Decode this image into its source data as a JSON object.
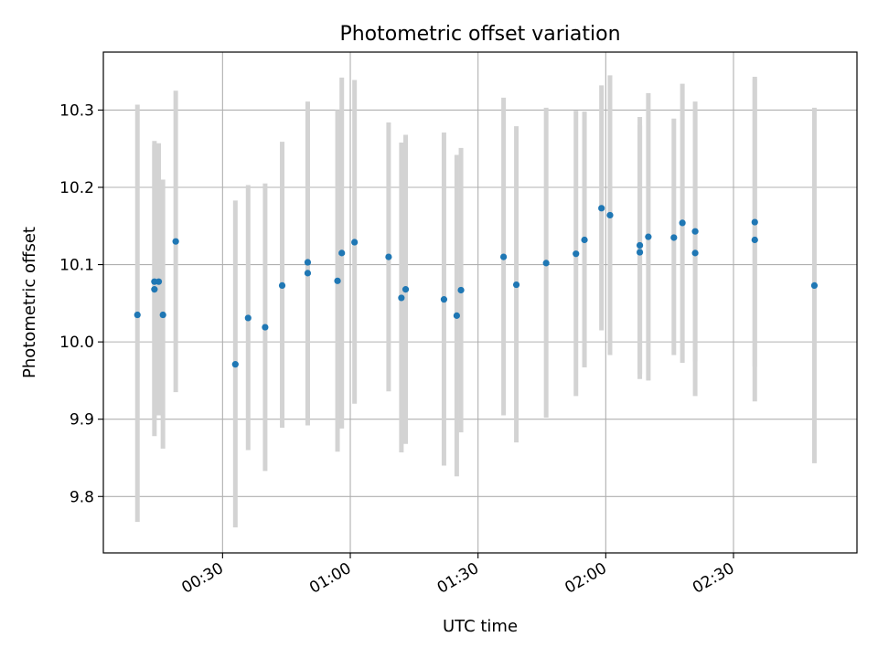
{
  "chart_data": {
    "type": "scatter",
    "title": "Photometric offset variation",
    "xlabel": "UTC time",
    "ylabel": "Photometric offset",
    "x_ticks": [
      "00:30",
      "01:00",
      "01:30",
      "02:00",
      "02:30"
    ],
    "y_ticks": [
      9.8,
      9.9,
      10.0,
      10.1,
      10.2,
      10.3
    ],
    "y_tick_labels": [
      "9.8",
      "9.9",
      "10.0",
      "10.1",
      "10.2",
      "10.3"
    ],
    "xlim": [
      "00:02",
      "02:59"
    ],
    "ylim": [
      9.727,
      10.375
    ],
    "grid": true,
    "colors": {
      "point": "#1f77b4",
      "errorbar": "#d3d3d3",
      "grid": "#b0b0b0"
    },
    "points": [
      {
        "x": "00:10",
        "y": 10.035,
        "err_low": 9.767,
        "err_high": 10.307
      },
      {
        "x": "00:14",
        "y": 10.068,
        "err_low": 9.878,
        "err_high": 10.26
      },
      {
        "x": "00:14",
        "y": 10.078,
        "err_low": 9.9,
        "err_high": 10.255
      },
      {
        "x": "00:15",
        "y": 10.078,
        "err_low": 9.905,
        "err_high": 10.257
      },
      {
        "x": "00:16",
        "y": 10.035,
        "err_low": 9.862,
        "err_high": 10.21
      },
      {
        "x": "00:19",
        "y": 10.13,
        "err_low": 9.935,
        "err_high": 10.325
      },
      {
        "x": "00:33",
        "y": 9.971,
        "err_low": 9.76,
        "err_high": 10.183
      },
      {
        "x": "00:36",
        "y": 10.031,
        "err_low": 9.86,
        "err_high": 10.203
      },
      {
        "x": "00:40",
        "y": 10.019,
        "err_low": 9.833,
        "err_high": 10.205
      },
      {
        "x": "00:44",
        "y": 10.073,
        "err_low": 9.889,
        "err_high": 10.259
      },
      {
        "x": "00:50",
        "y": 10.103,
        "err_low": 9.895,
        "err_high": 10.311
      },
      {
        "x": "00:50",
        "y": 10.089,
        "err_low": 9.892,
        "err_high": 10.288
      },
      {
        "x": "00:57",
        "y": 10.079,
        "err_low": 9.858,
        "err_high": 10.3
      },
      {
        "x": "00:58",
        "y": 10.115,
        "err_low": 9.888,
        "err_high": 10.342
      },
      {
        "x": "01:01",
        "y": 10.129,
        "err_low": 9.92,
        "err_high": 10.339
      },
      {
        "x": "01:09",
        "y": 10.11,
        "err_low": 9.936,
        "err_high": 10.284
      },
      {
        "x": "01:12",
        "y": 10.057,
        "err_low": 9.857,
        "err_high": 10.258
      },
      {
        "x": "01:13",
        "y": 10.068,
        "err_low": 9.868,
        "err_high": 10.268
      },
      {
        "x": "01:22",
        "y": 10.055,
        "err_low": 9.84,
        "err_high": 10.271
      },
      {
        "x": "01:25",
        "y": 10.034,
        "err_low": 9.826,
        "err_high": 10.242
      },
      {
        "x": "01:26",
        "y": 10.067,
        "err_low": 9.883,
        "err_high": 10.251
      },
      {
        "x": "01:36",
        "y": 10.11,
        "err_low": 9.905,
        "err_high": 10.316
      },
      {
        "x": "01:39",
        "y": 10.074,
        "err_low": 9.87,
        "err_high": 10.279
      },
      {
        "x": "01:46",
        "y": 10.102,
        "err_low": 9.902,
        "err_high": 10.303
      },
      {
        "x": "01:53",
        "y": 10.114,
        "err_low": 9.93,
        "err_high": 10.299
      },
      {
        "x": "01:55",
        "y": 10.132,
        "err_low": 9.967,
        "err_high": 10.298
      },
      {
        "x": "01:59",
        "y": 10.173,
        "err_low": 10.015,
        "err_high": 10.332
      },
      {
        "x": "02:01",
        "y": 10.164,
        "err_low": 9.983,
        "err_high": 10.345
      },
      {
        "x": "02:08",
        "y": 10.125,
        "err_low": 9.958,
        "err_high": 10.291
      },
      {
        "x": "02:08",
        "y": 10.116,
        "err_low": 9.952,
        "err_high": 10.28
      },
      {
        "x": "02:10",
        "y": 10.136,
        "err_low": 9.95,
        "err_high": 10.322
      },
      {
        "x": "02:16",
        "y": 10.135,
        "err_low": 9.983,
        "err_high": 10.289
      },
      {
        "x": "02:18",
        "y": 10.154,
        "err_low": 9.973,
        "err_high": 10.334
      },
      {
        "x": "02:21",
        "y": 10.143,
        "err_low": 9.975,
        "err_high": 10.311
      },
      {
        "x": "02:21",
        "y": 10.115,
        "err_low": 9.93,
        "err_high": 10.3
      },
      {
        "x": "02:35",
        "y": 10.155,
        "err_low": 9.968,
        "err_high": 10.343
      },
      {
        "x": "02:35",
        "y": 10.132,
        "err_low": 9.923,
        "err_high": 10.34
      },
      {
        "x": "02:49",
        "y": 10.073,
        "err_low": 9.843,
        "err_high": 10.303
      }
    ]
  }
}
